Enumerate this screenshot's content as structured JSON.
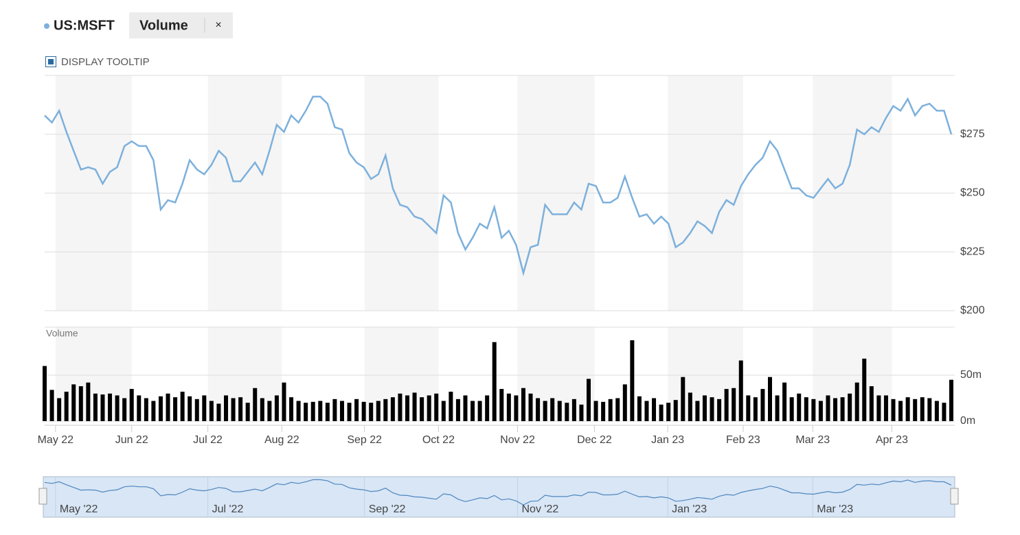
{
  "header": {
    "close_label": "×",
    "tooltip_toggle": "DISPLAY TOOLTIP"
  },
  "chart_data": [
    {
      "type": "line",
      "xlim": [
        0,
        125
      ],
      "ylim": [
        200,
        300
      ],
      "yticks": [
        {
          "value": 200,
          "label": "$200"
        },
        {
          "value": 225,
          "label": "$225"
        },
        {
          "value": 250,
          "label": "$250"
        },
        {
          "value": 275,
          "label": "$275"
        }
      ],
      "xticks": [
        {
          "value": 1.5,
          "label": "May 22"
        },
        {
          "value": 12,
          "label": "Jun 22"
        },
        {
          "value": 22.5,
          "label": "Jul 22"
        },
        {
          "value": 32.7,
          "label": "Aug 22"
        },
        {
          "value": 44.1,
          "label": "Sep 22"
        },
        {
          "value": 54.3,
          "label": "Oct 22"
        },
        {
          "value": 65.2,
          "label": "Nov 22"
        },
        {
          "value": 75.8,
          "label": "Dec 22"
        },
        {
          "value": 85.9,
          "label": "Jan 23"
        },
        {
          "value": 96.3,
          "label": "Feb 23"
        },
        {
          "value": 105.9,
          "label": "Mar 23"
        },
        {
          "value": 116.8,
          "label": "Apr 23"
        }
      ],
      "series": [
        {
          "name": "US:MSFT",
          "color": "#7cb0dc",
          "values": [
            283,
            280,
            285,
            276,
            268,
            260,
            261,
            260,
            254,
            259,
            261,
            270,
            272,
            270,
            270,
            264,
            243,
            247,
            246,
            254,
            264,
            260,
            258,
            262,
            268,
            265,
            255,
            255,
            259,
            263,
            258,
            268,
            279,
            276,
            283,
            280,
            285,
            291,
            291,
            288,
            278,
            277,
            267,
            263,
            261,
            256,
            258,
            266,
            252,
            245,
            244,
            240,
            239,
            236,
            233,
            249,
            246,
            233,
            226,
            231,
            237,
            235,
            244,
            231,
            234,
            228,
            216,
            227,
            228,
            245,
            241,
            241,
            241,
            246,
            243,
            254,
            253,
            246,
            246,
            248,
            257,
            248,
            240,
            241,
            237,
            240,
            237,
            227,
            229,
            233,
            238,
            236,
            233,
            242,
            247,
            245,
            253,
            258,
            262,
            265,
            272,
            268,
            260,
            252,
            252,
            249,
            248,
            252,
            256,
            252,
            254,
            262,
            277,
            275,
            278,
            276,
            282,
            287,
            285,
            290,
            283,
            287,
            288,
            285,
            285,
            275
          ]
        }
      ]
    },
    {
      "type": "bar",
      "title": "Volume",
      "xlim": [
        0,
        125
      ],
      "ylim": [
        0,
        100
      ],
      "yticks": [
        {
          "value": 0,
          "label": "0m"
        },
        {
          "value": 50,
          "label": "50m"
        }
      ],
      "series": [
        {
          "name": "Volume",
          "color": "#000000",
          "values": [
            60,
            34,
            25,
            32,
            40,
            38,
            42,
            30,
            29,
            30,
            28,
            25,
            35,
            28,
            25,
            22,
            27,
            30,
            26,
            32,
            27,
            24,
            28,
            22,
            19,
            28,
            25,
            26,
            20,
            36,
            25,
            22,
            28,
            42,
            26,
            22,
            20,
            21,
            22,
            20,
            24,
            22,
            20,
            24,
            21,
            20,
            22,
            24,
            26,
            30,
            28,
            31,
            26,
            28,
            30,
            22,
            32,
            24,
            28,
            22,
            22,
            28,
            86,
            35,
            30,
            28,
            36,
            30,
            25,
            22,
            25,
            22,
            20,
            24,
            18,
            46,
            22,
            21,
            24,
            25,
            40,
            88,
            27,
            22,
            25,
            18,
            20,
            23,
            48,
            31,
            22,
            28,
            26,
            24,
            35,
            36,
            66,
            28,
            26,
            35,
            48,
            28,
            42,
            26,
            30,
            26,
            24,
            22,
            28,
            25,
            26,
            30,
            42,
            68,
            38,
            28,
            28,
            24,
            22,
            26,
            24,
            26,
            25,
            22,
            20,
            45
          ]
        }
      ]
    }
  ],
  "navigator": {
    "xticks": [
      {
        "value": 1.5,
        "label": "May '22"
      },
      {
        "value": 22.5,
        "label": "Jul '22"
      },
      {
        "value": 44.1,
        "label": "Sep '22"
      },
      {
        "value": 65.2,
        "label": "Nov '22"
      },
      {
        "value": 85.9,
        "label": "Jan '23"
      },
      {
        "value": 105.9,
        "label": "Mar '23"
      }
    ]
  }
}
